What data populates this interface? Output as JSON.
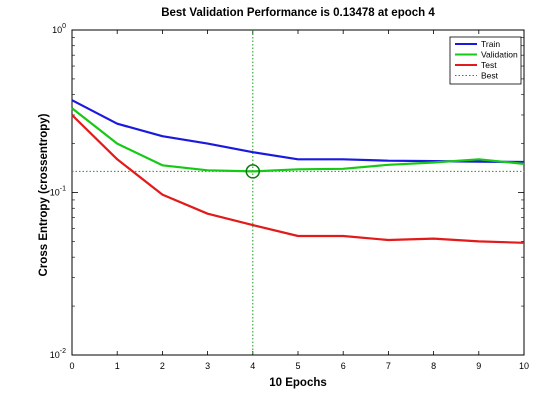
{
  "chart_data": {
    "type": "line",
    "title": "Best Validation Performance is 0.13478 at epoch 4",
    "xlabel": "10 Epochs",
    "ylabel": "Cross Entropy  (crossentropy)",
    "x": [
      0,
      1,
      2,
      3,
      4,
      5,
      6,
      7,
      8,
      9,
      10
    ],
    "xlim": [
      0,
      10
    ],
    "ylim": [
      0.01,
      1
    ],
    "yscale": "log",
    "xticks": [
      "0",
      "1",
      "2",
      "3",
      "4",
      "5",
      "6",
      "7",
      "8",
      "9",
      "10"
    ],
    "yticks": [
      {
        "value": 1,
        "base": "10",
        "exp": "0"
      },
      {
        "value": 0.1,
        "base": "10",
        "exp": "-1"
      },
      {
        "value": 0.01,
        "base": "10",
        "exp": "-2"
      }
    ],
    "grid": false,
    "legend_position": "top-right",
    "series": [
      {
        "name": "Train",
        "color": "#1a1adf",
        "style": "solid",
        "values": [
          0.37,
          0.265,
          0.222,
          0.2,
          0.177,
          0.16,
          0.16,
          0.157,
          0.156,
          0.155,
          0.154
        ]
      },
      {
        "name": "Validation",
        "color": "#16c916",
        "style": "solid",
        "values": [
          0.33,
          0.2,
          0.147,
          0.137,
          0.13478,
          0.139,
          0.14,
          0.148,
          0.153,
          0.16,
          0.15
        ]
      },
      {
        "name": "Test",
        "color": "#e21a1a",
        "style": "solid",
        "values": [
          0.3,
          0.16,
          0.097,
          0.074,
          0.063,
          0.054,
          0.054,
          0.051,
          0.052,
          0.05,
          0.049
        ]
      }
    ],
    "best": {
      "name": "Best",
      "color": "#1a9a1a",
      "epoch": 4,
      "value": 0.13478
    }
  }
}
